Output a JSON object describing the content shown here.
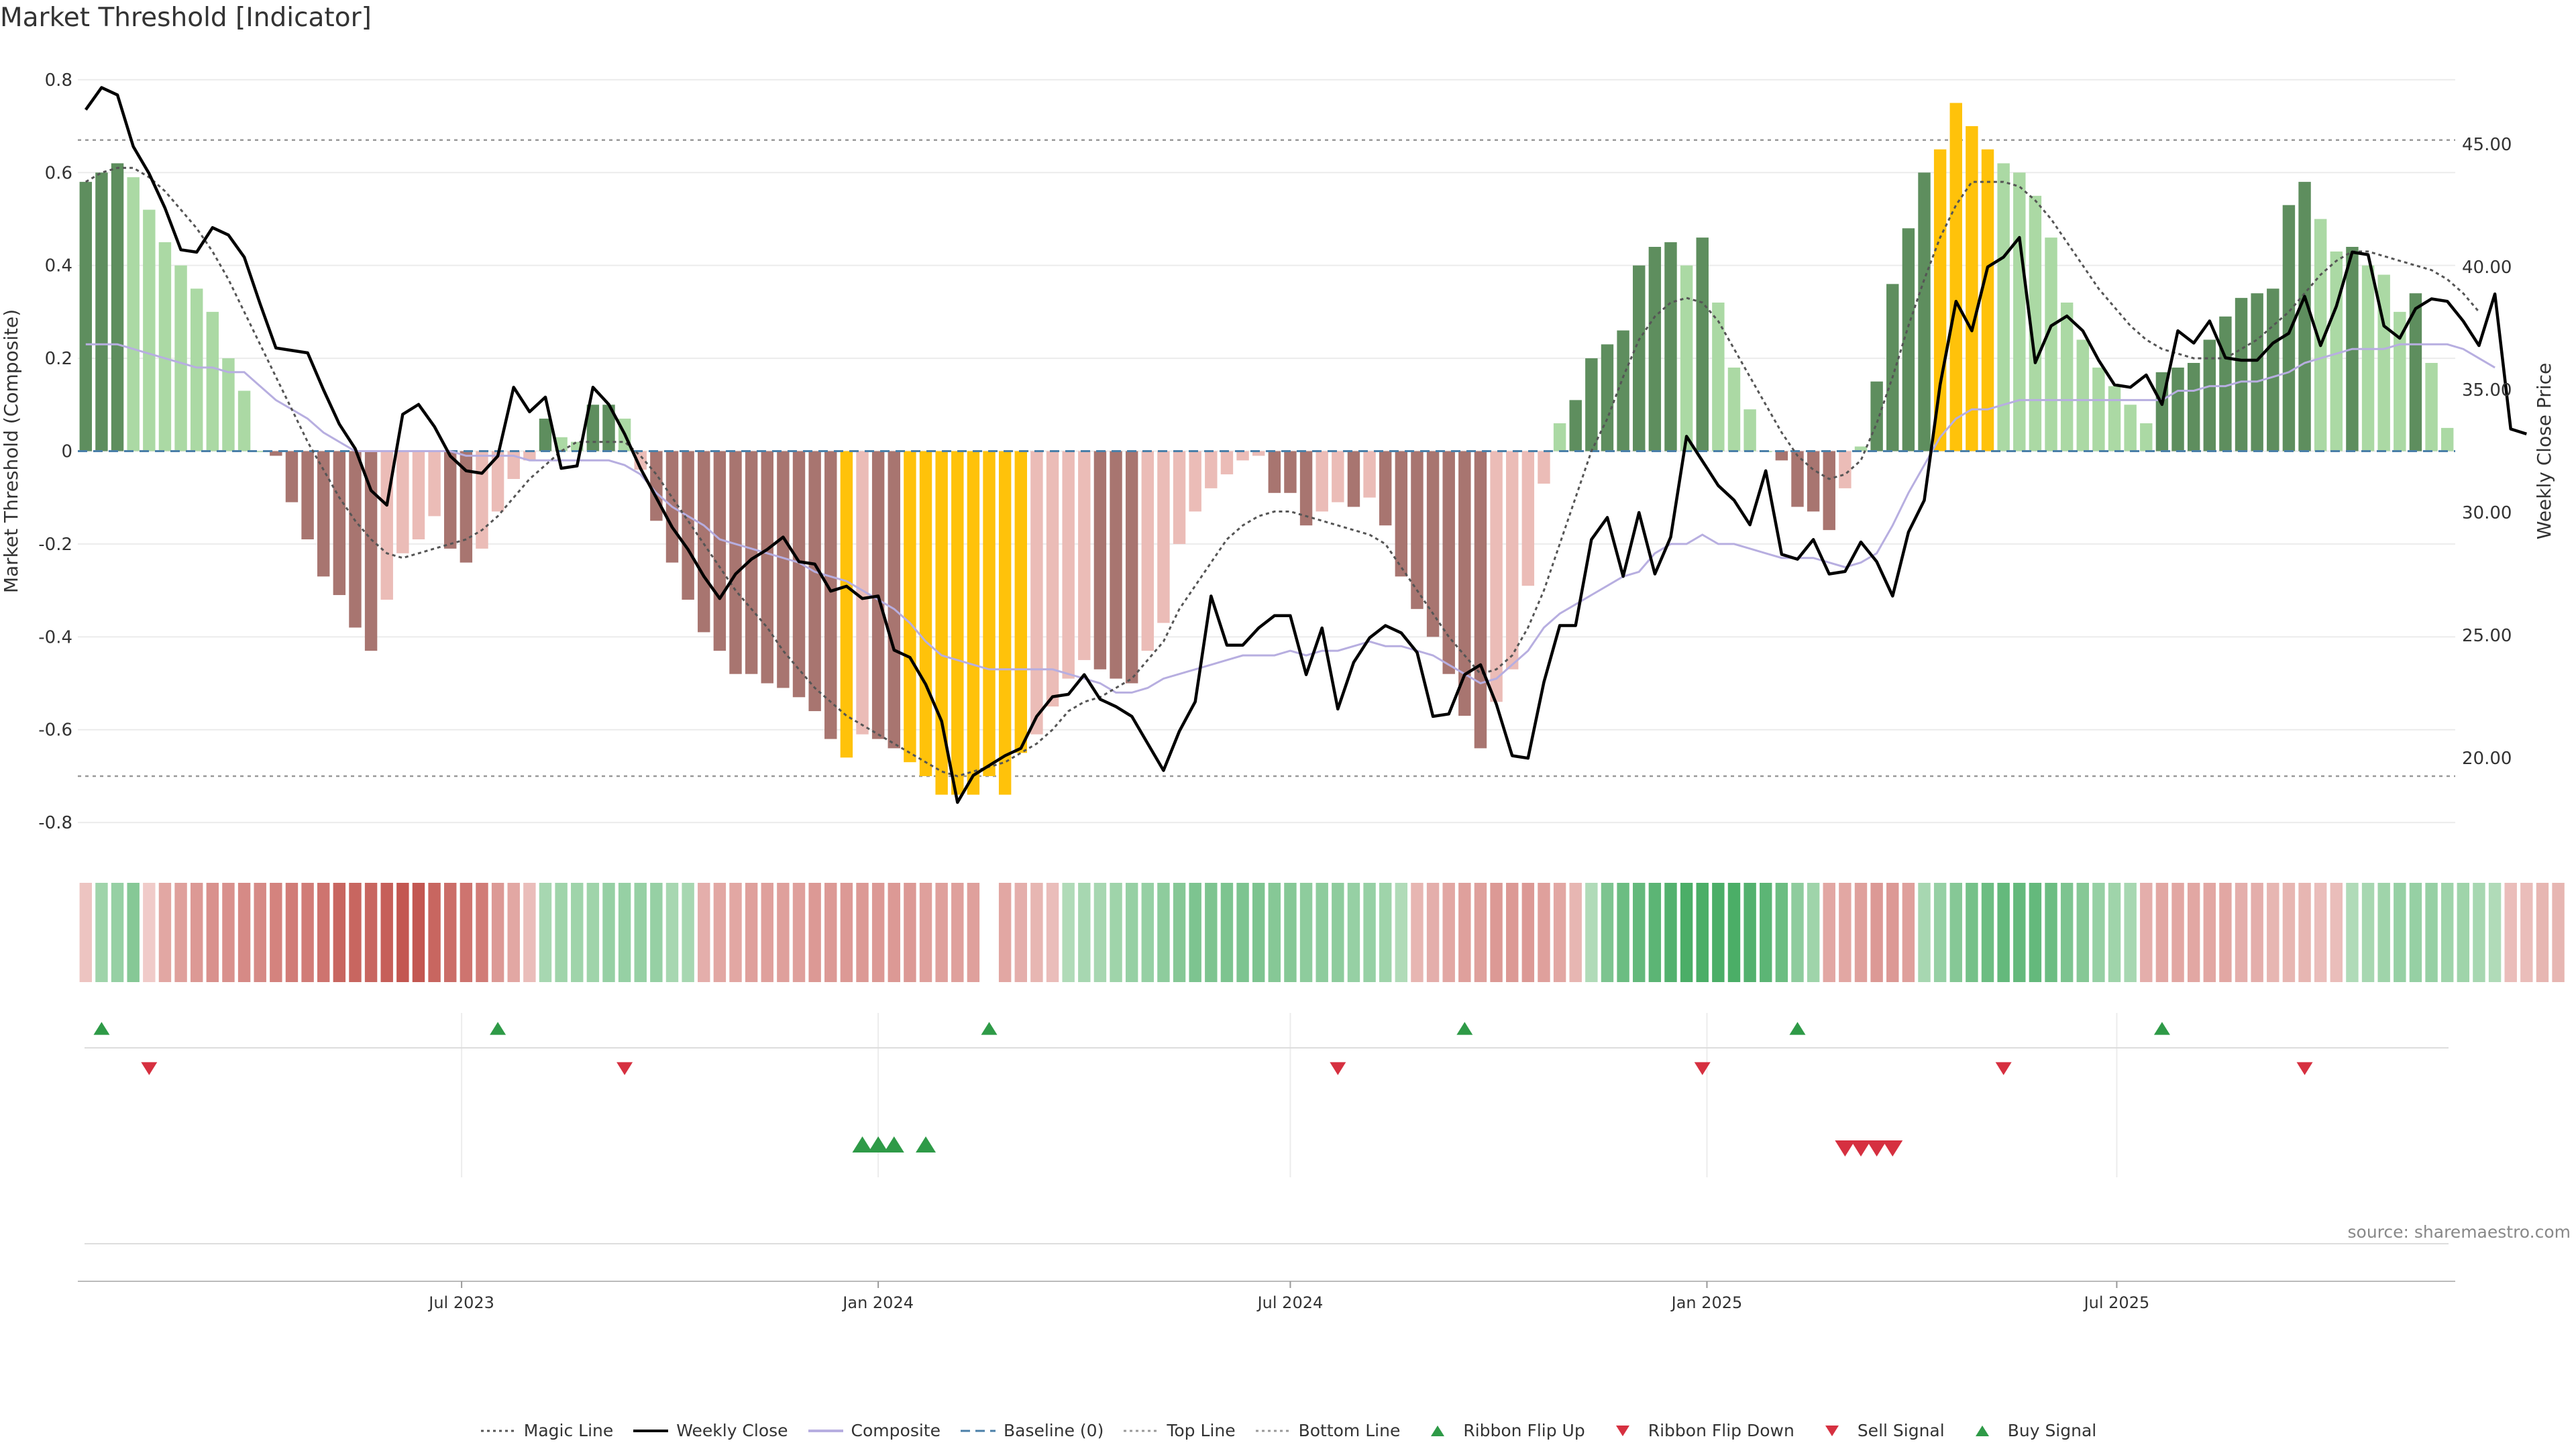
{
  "page": {
    "title": "Market Threshold [Indicator]",
    "source": "source: sharemaestro.com"
  },
  "chart_data": {
    "type": "bar",
    "title": "Market Threshold [Indicator]",
    "ylabel": "Market Threshold (Composite)",
    "y2label": "Weekly Close Price",
    "ylim": [
      -0.82,
      0.82
    ],
    "y2lim": [
      17.0,
      48.0
    ],
    "yticks": [
      "0.8",
      "0.6",
      "0.4",
      "0.2",
      "0",
      "-0.2",
      "-0.4",
      "-0.6",
      "-0.8"
    ],
    "y2ticks": [
      "45.00",
      "40.00",
      "35.00",
      "30.00",
      "25.00",
      "20.00"
    ],
    "xticks": [
      "Jul 2023",
      "Jan 2024",
      "Jul 2024",
      "Jan 2025",
      "Jul 2025"
    ],
    "week_start": "2023-01-16",
    "top_line": 0.67,
    "bottom_line": -0.7,
    "composite_bars": [
      0.58,
      0.6,
      0.62,
      0.59,
      0.52,
      0.45,
      0.4,
      0.35,
      0.3,
      0.2,
      0.13,
      0.0,
      -0.01,
      -0.11,
      -0.19,
      -0.27,
      -0.31,
      -0.38,
      -0.43,
      -0.32,
      -0.22,
      -0.19,
      -0.14,
      -0.21,
      -0.24,
      -0.21,
      -0.13,
      -0.06,
      -0.02,
      0.07,
      0.03,
      0.02,
      0.1,
      0.1,
      0.07,
      -0.04,
      -0.15,
      -0.24,
      -0.32,
      -0.39,
      -0.43,
      -0.48,
      -0.48,
      -0.5,
      -0.51,
      -0.53,
      -0.56,
      -0.62,
      -0.66,
      -0.61,
      -0.62,
      -0.64,
      -0.67,
      -0.7,
      -0.74,
      -0.74,
      -0.74,
      -0.7,
      -0.74,
      -0.65,
      -0.61,
      -0.55,
      -0.49,
      -0.45,
      -0.47,
      -0.49,
      -0.5,
      -0.43,
      -0.37,
      -0.2,
      -0.13,
      -0.08,
      -0.05,
      -0.02,
      -0.01,
      -0.09,
      -0.09,
      -0.16,
      -0.13,
      -0.11,
      -0.12,
      -0.1,
      -0.16,
      -0.27,
      -0.34,
      -0.4,
      -0.48,
      -0.57,
      -0.64,
      -0.54,
      -0.47,
      -0.29,
      -0.07,
      0.06,
      0.11,
      0.2,
      0.23,
      0.26,
      0.4,
      0.44,
      0.45,
      0.4,
      0.46,
      0.32,
      0.18,
      0.09,
      0.0,
      -0.02,
      -0.12,
      -0.13,
      -0.17,
      -0.08,
      0.01,
      0.15,
      0.36,
      0.48,
      0.6,
      0.65,
      0.75,
      0.7,
      0.65,
      0.62,
      0.6,
      0.55,
      0.46,
      0.32,
      0.24,
      0.18,
      0.14,
      0.1,
      0.06,
      0.17,
      0.18,
      0.19,
      0.24,
      0.29,
      0.33,
      0.34,
      0.35,
      0.53,
      0.58,
      0.5,
      0.43,
      0.44,
      0.4,
      0.38,
      0.3,
      0.34,
      0.19,
      0.05
    ],
    "weekly_close": [
      46.4,
      47.3,
      47.0,
      44.9,
      43.8,
      42.4,
      40.7,
      40.6,
      41.6,
      41.3,
      40.4,
      38.5,
      36.7,
      36.6,
      36.5,
      35.0,
      33.6,
      32.6,
      30.9,
      30.3,
      34.0,
      34.4,
      33.5,
      32.3,
      31.7,
      31.6,
      32.3,
      35.1,
      34.1,
      34.7,
      31.8,
      31.9,
      35.1,
      34.4,
      33.2,
      31.8,
      30.6,
      29.4,
      28.5,
      27.4,
      26.5,
      27.5,
      28.1,
      28.5,
      29.0,
      28.0,
      27.9,
      26.8,
      27.0,
      26.5,
      26.6,
      24.4,
      24.1,
      23.0,
      21.5,
      18.2,
      19.3,
      19.7,
      20.1,
      20.4,
      21.7,
      22.5,
      22.6,
      23.4,
      22.4,
      22.1,
      21.7,
      20.6,
      19.5,
      21.1,
      22.3,
      26.6,
      24.6,
      24.6,
      25.3,
      25.8,
      25.8,
      23.4,
      25.3,
      22.0,
      23.9,
      24.9,
      25.4,
      25.1,
      24.3,
      21.7,
      21.8,
      23.4,
      23.8,
      22.2,
      20.1,
      20.0,
      23.1,
      25.4,
      25.4,
      28.9,
      29.8,
      27.4,
      30.0,
      27.5,
      29.0,
      33.1,
      32.1,
      31.1,
      30.5,
      29.5,
      31.7,
      28.3,
      28.1,
      28.9,
      27.5,
      27.6,
      28.8,
      28.0,
      26.6,
      29.2,
      30.5,
      35.2,
      38.6,
      37.4,
      40.0,
      40.4,
      41.2,
      36.1,
      37.6,
      38.0,
      37.4,
      36.2,
      35.2,
      35.1,
      35.6,
      34.4,
      37.4,
      36.9,
      37.8,
      36.3,
      36.2,
      36.2,
      36.9,
      37.3,
      38.8,
      36.8,
      38.4,
      40.6,
      40.5,
      37.6,
      37.1,
      38.3,
      38.7,
      38.6,
      37.8,
      36.8,
      38.9,
      33.4,
      33.2
    ],
    "composite_line": [
      0.23,
      0.23,
      0.23,
      0.22,
      0.21,
      0.2,
      0.19,
      0.18,
      0.18,
      0.17,
      0.17,
      0.14,
      0.11,
      0.09,
      0.07,
      0.04,
      0.02,
      0.0,
      -0.0,
      -0.0,
      -0.0,
      -0.0,
      -0.0,
      -0.0,
      -0.01,
      -0.01,
      -0.01,
      -0.01,
      -0.02,
      -0.02,
      -0.02,
      -0.02,
      -0.02,
      -0.02,
      -0.03,
      -0.05,
      -0.09,
      -0.12,
      -0.14,
      -0.16,
      -0.19,
      -0.2,
      -0.21,
      -0.22,
      -0.23,
      -0.24,
      -0.26,
      -0.27,
      -0.28,
      -0.3,
      -0.32,
      -0.34,
      -0.37,
      -0.41,
      -0.44,
      -0.45,
      -0.46,
      -0.47,
      -0.47,
      -0.47,
      -0.47,
      -0.47,
      -0.48,
      -0.49,
      -0.5,
      -0.52,
      -0.52,
      -0.51,
      -0.49,
      -0.48,
      -0.47,
      -0.46,
      -0.45,
      -0.44,
      -0.44,
      -0.44,
      -0.43,
      -0.44,
      -0.43,
      -0.43,
      -0.42,
      -0.41,
      -0.42,
      -0.42,
      -0.43,
      -0.44,
      -0.46,
      -0.48,
      -0.5,
      -0.49,
      -0.46,
      -0.43,
      -0.38,
      -0.35,
      -0.33,
      -0.31,
      -0.29,
      -0.27,
      -0.26,
      -0.22,
      -0.2,
      -0.2,
      -0.18,
      -0.2,
      -0.2,
      -0.21,
      -0.22,
      -0.23,
      -0.23,
      -0.23,
      -0.24,
      -0.25,
      -0.24,
      -0.22,
      -0.16,
      -0.09,
      -0.03,
      0.03,
      0.07,
      0.09,
      0.09,
      0.1,
      0.11,
      0.11,
      0.11,
      0.11,
      0.11,
      0.11,
      0.11,
      0.11,
      0.11,
      0.11,
      0.13,
      0.13,
      0.14,
      0.14,
      0.15,
      0.15,
      0.16,
      0.17,
      0.19,
      0.2,
      0.21,
      0.22,
      0.22,
      0.22,
      0.23,
      0.23,
      0.23,
      0.23,
      0.22,
      0.2,
      0.18
    ],
    "magic_line": [
      0.58,
      0.6,
      0.61,
      0.61,
      0.59,
      0.56,
      0.52,
      0.48,
      0.43,
      0.37,
      0.3,
      0.23,
      0.16,
      0.09,
      0.02,
      -0.04,
      -0.1,
      -0.15,
      -0.19,
      -0.22,
      -0.23,
      -0.22,
      -0.21,
      -0.2,
      -0.19,
      -0.17,
      -0.14,
      -0.1,
      -0.06,
      -0.03,
      0.0,
      0.02,
      0.02,
      0.02,
      0.02,
      -0.01,
      -0.05,
      -0.1,
      -0.15,
      -0.2,
      -0.25,
      -0.3,
      -0.34,
      -0.38,
      -0.43,
      -0.47,
      -0.51,
      -0.54,
      -0.57,
      -0.59,
      -0.61,
      -0.63,
      -0.65,
      -0.67,
      -0.69,
      -0.7,
      -0.69,
      -0.68,
      -0.67,
      -0.65,
      -0.63,
      -0.6,
      -0.56,
      -0.54,
      -0.53,
      -0.51,
      -0.49,
      -0.45,
      -0.41,
      -0.34,
      -0.29,
      -0.24,
      -0.19,
      -0.16,
      -0.14,
      -0.13,
      -0.13,
      -0.14,
      -0.15,
      -0.16,
      -0.17,
      -0.18,
      -0.2,
      -0.25,
      -0.3,
      -0.35,
      -0.4,
      -0.44,
      -0.48,
      -0.47,
      -0.44,
      -0.38,
      -0.3,
      -0.2,
      -0.1,
      0.0,
      0.07,
      0.16,
      0.24,
      0.29,
      0.32,
      0.33,
      0.32,
      0.28,
      0.22,
      0.16,
      0.1,
      0.04,
      -0.01,
      -0.04,
      -0.06,
      -0.05,
      -0.02,
      0.06,
      0.16,
      0.27,
      0.37,
      0.46,
      0.53,
      0.58,
      0.58,
      0.58,
      0.57,
      0.54,
      0.5,
      0.45,
      0.4,
      0.35,
      0.31,
      0.27,
      0.24,
      0.22,
      0.21,
      0.2,
      0.2,
      0.2,
      0.22,
      0.24,
      0.27,
      0.3,
      0.34,
      0.38,
      0.41,
      0.43,
      0.43,
      0.42,
      0.41,
      0.4,
      0.39,
      0.37,
      0.34,
      0.3
    ],
    "ribbon_strength": [
      -0.2,
      0.4,
      0.45,
      0.55,
      -0.15,
      -0.4,
      -0.45,
      -0.5,
      -0.55,
      -0.55,
      -0.6,
      -0.6,
      -0.65,
      -0.7,
      -0.7,
      -0.75,
      -0.85,
      -0.85,
      -0.85,
      -0.9,
      -0.95,
      -0.95,
      -0.85,
      -0.8,
      -0.75,
      -0.7,
      -0.5,
      -0.4,
      -0.25,
      0.35,
      0.4,
      0.4,
      0.4,
      0.45,
      0.45,
      0.45,
      0.45,
      0.35,
      0.35,
      -0.35,
      -0.4,
      -0.4,
      -0.45,
      -0.45,
      -0.45,
      -0.45,
      -0.5,
      -0.5,
      -0.5,
      -0.5,
      -0.5,
      -0.5,
      -0.5,
      -0.45,
      -0.45,
      -0.45,
      -0.45,
      null,
      -0.4,
      -0.35,
      -0.3,
      -0.25,
      0.3,
      0.35,
      0.35,
      0.4,
      0.45,
      0.45,
      0.5,
      0.55,
      0.6,
      0.6,
      0.6,
      0.6,
      0.6,
      0.55,
      0.55,
      0.5,
      0.5,
      0.5,
      0.45,
      0.45,
      0.4,
      0.3,
      -0.3,
      -0.35,
      -0.4,
      -0.45,
      -0.45,
      -0.5,
      -0.5,
      -0.5,
      -0.45,
      -0.4,
      -0.3,
      0.3,
      0.6,
      0.7,
      0.75,
      0.8,
      0.85,
      0.9,
      0.9,
      0.9,
      0.9,
      0.85,
      0.8,
      0.7,
      0.5,
      0.4,
      -0.4,
      -0.4,
      -0.45,
      -0.5,
      -0.5,
      -0.45,
      0.35,
      0.45,
      0.55,
      0.65,
      0.7,
      0.75,
      0.75,
      0.75,
      0.7,
      0.6,
      0.55,
      0.45,
      0.4,
      0.35,
      -0.35,
      -0.4,
      -0.4,
      -0.4,
      -0.4,
      -0.4,
      -0.35,
      -0.35,
      -0.3,
      -0.3,
      -0.3,
      -0.25,
      -0.25,
      0.3,
      0.35,
      0.4,
      0.45,
      0.45,
      0.45,
      0.4,
      0.4,
      0.35,
      0.3,
      -0.25,
      -0.25,
      -0.3,
      -0.3
    ],
    "ribbon_flip_up_weeks": [
      1,
      26,
      57,
      87,
      108,
      131
    ],
    "ribbon_flip_down_weeks": [
      4,
      34,
      79,
      102,
      121,
      140
    ],
    "buy_signal_weeks": [
      49,
      50,
      51,
      53
    ],
    "sell_signal_weeks": [
      111,
      112,
      113,
      114
    ],
    "legend": [
      {
        "name": "Magic Line",
        "style": "dotted",
        "color": "#555555"
      },
      {
        "name": "Weekly Close",
        "style": "solid",
        "color": "#000000"
      },
      {
        "name": "Composite",
        "style": "solid",
        "color": "#b7aee0"
      },
      {
        "name": "Baseline (0)",
        "style": "dashed",
        "color": "#4a7fa8"
      },
      {
        "name": "Top Line",
        "style": "dotted",
        "color": "#999999"
      },
      {
        "name": "Bottom Line",
        "style": "dotted",
        "color": "#999999"
      },
      {
        "name": "Ribbon Flip Up",
        "style": "triangle-up",
        "color": "#2e9a47"
      },
      {
        "name": "Ribbon Flip Down",
        "style": "triangle-down",
        "color": "#d63040"
      },
      {
        "name": "Sell Signal",
        "style": "triangle-down",
        "color": "#d63040"
      },
      {
        "name": "Buy Signal",
        "style": "triangle-up",
        "color": "#2e9a47"
      }
    ],
    "colors": {
      "bar_pos_strong": "#5e8e5e",
      "bar_pos_weak": "#abd9a4",
      "bar_neg_strong": "#a87570",
      "bar_neg_weak": "#ebbcb7",
      "bar_extreme": "#ffc20a",
      "close": "#000000",
      "composite": "#b7aee0",
      "magic": "#555555",
      "baseline": "#4a7fa8",
      "threshold": "#999999",
      "up": "#2e9a47",
      "down": "#d63040"
    },
    "legend_placement": "bottom-center",
    "grid": true
  }
}
